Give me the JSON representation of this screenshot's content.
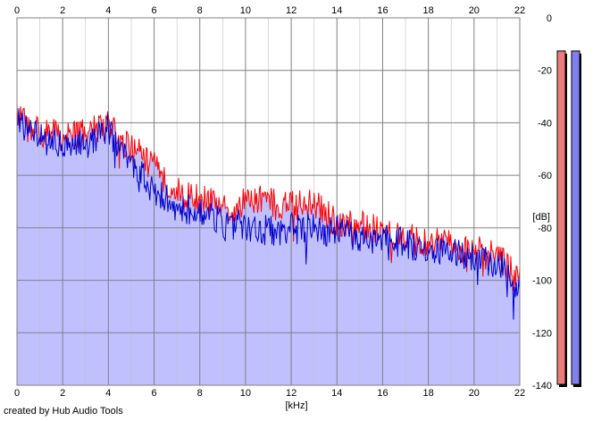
{
  "footer": {
    "credit": "created by Hub Audio Tools"
  },
  "colors": {
    "background": "#ffffff",
    "plot_area": "#ffffff",
    "grid_major": "#808080",
    "grid_minor": "#c0c0c0",
    "left_channel": "#ff0000",
    "right_channel": "#0000cc",
    "fill": "#c0c0ff",
    "meter_left": "#ee7b7b",
    "meter_right": "#8080ee"
  },
  "chart_data": {
    "type": "area",
    "title": "",
    "xlabel": "[kHz]",
    "ylabel": "[dB]",
    "xlim": [
      0,
      22
    ],
    "ylim": [
      -140,
      0
    ],
    "x_ticks": [
      0,
      2,
      4,
      6,
      8,
      10,
      12,
      14,
      16,
      18,
      20,
      22
    ],
    "y_ticks": [
      0,
      -20,
      -40,
      -60,
      -80,
      -100,
      -120,
      -140
    ],
    "y_tick_labels": [
      "0",
      "-20",
      "-40",
      "-60",
      "-80",
      "-100",
      "-120",
      "-140"
    ],
    "x_tick_labels_top": true,
    "x_tick_labels_bottom": true,
    "y_axis_side": "right",
    "grid": true,
    "legend": "none",
    "series": [
      {
        "color": "#ff0000",
        "x": [
          0,
          0.5,
          1,
          1.5,
          2,
          2.5,
          3,
          3.5,
          4,
          4.5,
          5,
          5.5,
          6,
          6.5,
          7,
          7.5,
          8,
          8.5,
          9,
          9.5,
          10,
          10.5,
          11,
          11.5,
          12,
          12.5,
          13,
          13.5,
          14,
          14.5,
          15,
          15.5,
          16,
          16.5,
          17,
          17.5,
          18,
          18.5,
          19,
          19.5,
          20,
          20.5,
          21,
          21.5,
          22
        ],
        "values": [
          -37,
          -42,
          -43,
          -44,
          -45,
          -45,
          -44,
          -42,
          -40,
          -47,
          -50,
          -53,
          -57,
          -62,
          -66,
          -68,
          -69,
          -70,
          -72,
          -72,
          -70,
          -69,
          -70,
          -72,
          -71,
          -72,
          -71,
          -75,
          -78,
          -78,
          -79,
          -80,
          -80,
          -82,
          -84,
          -85,
          -86,
          -86,
          -87,
          -88,
          -88,
          -90,
          -91,
          -95,
          -100
        ]
      },
      {
        "color": "#0000cc",
        "x": [
          0,
          0.5,
          1,
          1.5,
          2,
          2.5,
          3,
          3.5,
          4,
          4.5,
          5,
          5.5,
          6,
          6.5,
          7,
          7.5,
          8,
          8.5,
          9,
          9.5,
          10,
          10.5,
          11,
          11.5,
          12,
          12.5,
          13,
          13.5,
          14,
          14.5,
          15,
          15.5,
          16,
          16.5,
          17,
          17.5,
          18,
          18.5,
          19,
          19.5,
          20,
          20.5,
          21,
          21.5,
          22
        ],
        "values": [
          -36,
          -44,
          -46,
          -48,
          -49,
          -49,
          -47,
          -45,
          -42,
          -50,
          -55,
          -61,
          -66,
          -69,
          -72,
          -73,
          -74,
          -76,
          -78,
          -79,
          -79,
          -80,
          -81,
          -81,
          -80,
          -81,
          -80,
          -81,
          -81,
          -83,
          -83,
          -84,
          -85,
          -85,
          -86,
          -87,
          -87,
          -88,
          -89,
          -90,
          -91,
          -92,
          -94,
          -96,
          -106
        ]
      }
    ]
  },
  "level_meters": [
    {
      "channel": "left",
      "color": "#ee7b7b"
    },
    {
      "channel": "right",
      "color": "#8080ee"
    }
  ]
}
